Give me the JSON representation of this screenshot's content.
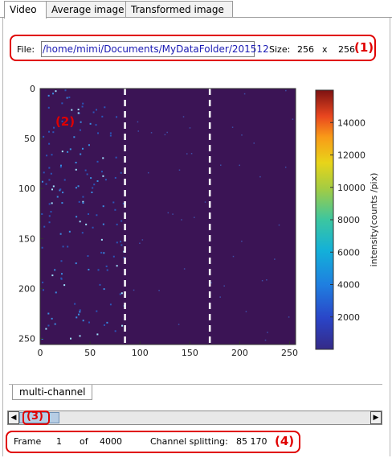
{
  "tabs": [
    {
      "label": "Video",
      "active": true
    },
    {
      "label": "Average image",
      "active": false
    },
    {
      "label": "Transformed image",
      "active": false
    }
  ],
  "file": {
    "label": "File:",
    "value": "/home/mimi/Documents/MyDataFolder/201512"
  },
  "size": {
    "label": "Size:",
    "width": "256",
    "x": "x",
    "height": "256"
  },
  "annotations": {
    "a1": "(1)",
    "a2": "(2)",
    "a3": "(3)",
    "a4": "(4)"
  },
  "subtab": {
    "label": "multi-channel"
  },
  "scrollbar": {
    "left_arrow": "◀",
    "right_arrow": "▶",
    "position_fraction": 0.0
  },
  "status": {
    "frame_label": "Frame",
    "frame_value": "1",
    "of_label": "of",
    "frame_total": "4000",
    "split_label": "Channel splitting:",
    "split_values": "85 170"
  },
  "colors": {
    "annotation": "#e00000",
    "image_background": "#3b1455",
    "split_line": "#ffffff"
  },
  "chart_data": {
    "type": "heatmap",
    "xlim": [
      0,
      256
    ],
    "ylim": [
      256,
      0
    ],
    "x_ticks": [
      "0",
      "50",
      "100",
      "150",
      "200",
      "250"
    ],
    "y_ticks": [
      "0",
      "50",
      "100",
      "150",
      "200",
      "250"
    ],
    "x_tick_values": [
      0,
      50,
      100,
      150,
      200,
      250
    ],
    "y_tick_values": [
      0,
      50,
      100,
      150,
      200,
      250
    ],
    "split_lines_x": [
      85,
      170
    ],
    "colorbar": {
      "label": "intensity(counts /pix)",
      "ticks": [
        "2000",
        "4000",
        "6000",
        "8000",
        "10000",
        "12000",
        "14000"
      ],
      "tick_values": [
        2000,
        4000,
        6000,
        8000,
        10000,
        12000,
        14000
      ],
      "range": [
        0,
        16000
      ],
      "colormap": "parula-jet"
    }
  }
}
